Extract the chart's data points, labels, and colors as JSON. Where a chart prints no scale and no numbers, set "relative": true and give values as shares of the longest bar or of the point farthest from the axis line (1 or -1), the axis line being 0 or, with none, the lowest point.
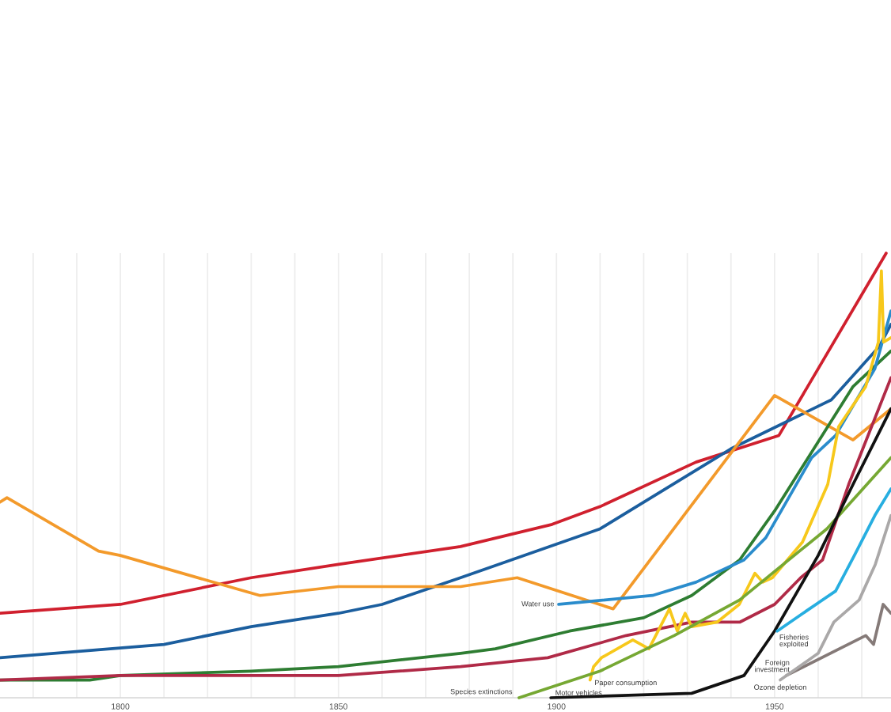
{
  "chart_data": {
    "type": "line",
    "relative": true,
    "grid": "x",
    "xlim": [
      1772.4,
      1976.7
    ],
    "xticks": [
      {
        "value": 1780,
        "label": null
      },
      {
        "value": 1790,
        "label": null
      },
      1800,
      {
        "value": 1810,
        "label": null
      },
      {
        "value": 1820,
        "label": null
      },
      {
        "value": 1830,
        "label": null
      },
      {
        "value": 1840,
        "label": null
      },
      1850,
      {
        "value": 1860,
        "label": null
      },
      {
        "value": 1870,
        "label": null
      },
      {
        "value": 1880,
        "label": null
      },
      {
        "value": 1890,
        "label": null
      },
      1900,
      {
        "value": 1910,
        "label": null
      },
      {
        "value": 1920,
        "label": null
      },
      {
        "value": 1930,
        "label": null
      },
      {
        "value": 1940,
        "label": null
      },
      1950,
      {
        "value": 1960,
        "label": null
      },
      {
        "value": 1970,
        "label": null
      }
    ],
    "series": [
      {
        "color": "#d0202e",
        "x": [
          1772.4,
          1800,
          1830,
          1850,
          1878,
          1899,
          1910,
          1932,
          1951,
          1975.6
        ],
        "values": [
          0.19,
          0.21,
          0.27,
          0.3,
          0.34,
          0.39,
          0.43,
          0.53,
          0.59,
          1.0
        ]
      },
      {
        "color": "#1b5e9e",
        "x": [
          1772.4,
          1810,
          1830,
          1850,
          1860,
          1878,
          1910,
          1940,
          1963,
          1974,
          1976.7
        ],
        "values": [
          0.09,
          0.12,
          0.16,
          0.19,
          0.21,
          0.27,
          0.38,
          0.56,
          0.67,
          0.79,
          0.84
        ]
      },
      {
        "color": "#f39a2b",
        "x": [
          1772.4,
          1774,
          1795,
          1800,
          1832,
          1850,
          1878,
          1891,
          1913,
          1950,
          1968,
          1976.7
        ],
        "values": [
          0.44,
          0.45,
          0.33,
          0.32,
          0.23,
          0.25,
          0.25,
          0.27,
          0.2,
          0.68,
          0.58,
          0.65
        ]
      },
      {
        "color": "#2e7d32",
        "x": [
          1772.4,
          1793,
          1800,
          1830,
          1850,
          1878,
          1886,
          1903,
          1920,
          1931,
          1942,
          1950,
          1968,
          1976.7
        ],
        "values": [
          0.04,
          0.04,
          0.05,
          0.06,
          0.07,
          0.1,
          0.11,
          0.15,
          0.18,
          0.23,
          0.31,
          0.42,
          0.7,
          0.78
        ]
      },
      {
        "color": "#b02a47",
        "x": [
          1772.4,
          1800,
          1850,
          1878,
          1898,
          1916,
          1931,
          1942,
          1950,
          1956,
          1961,
          1967,
          1976.7
        ],
        "values": [
          0.04,
          0.05,
          0.05,
          0.07,
          0.09,
          0.14,
          0.17,
          0.17,
          0.21,
          0.27,
          0.31,
          0.48,
          0.72
        ]
      },
      {
        "name": "Water use",
        "color": "#2a8ccc",
        "x": [
          1900.5,
          1922,
          1932,
          1943,
          1948,
          1958.5,
          1964,
          1973,
          1976.7
        ],
        "values": [
          0.21,
          0.23,
          0.26,
          0.31,
          0.36,
          0.54,
          0.59,
          0.74,
          0.87
        ]
      },
      {
        "name": "Paper consumption",
        "color": "#f7c81b",
        "x": [
          1907.7,
          1908.5,
          1910.3,
          1917.5,
          1921.2,
          1925.9,
          1927.7,
          1929.5,
          1931,
          1936.8,
          1941.9,
          1945.5,
          1947.3,
          1949.5,
          1956.4,
          1962.2,
          1964.7,
          1970.9,
          1973.8,
          1974.5,
          1975,
          1976.7
        ],
        "values": [
          0.04,
          0.07,
          0.09,
          0.13,
          0.11,
          0.2,
          0.15,
          0.19,
          0.16,
          0.17,
          0.21,
          0.28,
          0.26,
          0.27,
          0.35,
          0.48,
          0.61,
          0.7,
          0.8,
          0.96,
          0.8,
          0.81
        ]
      },
      {
        "name": "Species extinctions",
        "color": "#76a833",
        "x": [
          1891.4,
          1910,
          1927,
          1942,
          1962,
          1976.7
        ],
        "values": [
          0,
          0.06,
          0.14,
          0.22,
          0.38,
          0.54
        ]
      },
      {
        "name": "Motor vehicles",
        "color": "#111111",
        "x": [
          1898.7,
          1931,
          1943,
          1950,
          1960,
          1968,
          1976.7
        ],
        "values": [
          0,
          0.01,
          0.05,
          0.15,
          0.32,
          0.48,
          0.65
        ]
      },
      {
        "name": "Fisheries\nexploited",
        "color": "#27aee0",
        "x": [
          1950.6,
          1958,
          1964,
          1968.3,
          1973,
          1976.7
        ],
        "values": [
          0.15,
          0.2,
          0.24,
          0.32,
          0.41,
          0.47
        ]
      },
      {
        "name": "Foreign\ninvestment",
        "color": "#857a78",
        "x": [
          1952.7,
          1970.9,
          1972.7,
          1974.9,
          1976.7
        ],
        "values": [
          0.05,
          0.14,
          0.12,
          0.21,
          0.19
        ]
      },
      {
        "name": "Ozone depletion",
        "color": "#aaa8a8",
        "x": [
          1951.3,
          1960,
          1963.6,
          1969.4,
          1973.1,
          1976.7
        ],
        "values": [
          0.04,
          0.1,
          0.17,
          0.22,
          0.3,
          0.41
        ]
      }
    ]
  }
}
